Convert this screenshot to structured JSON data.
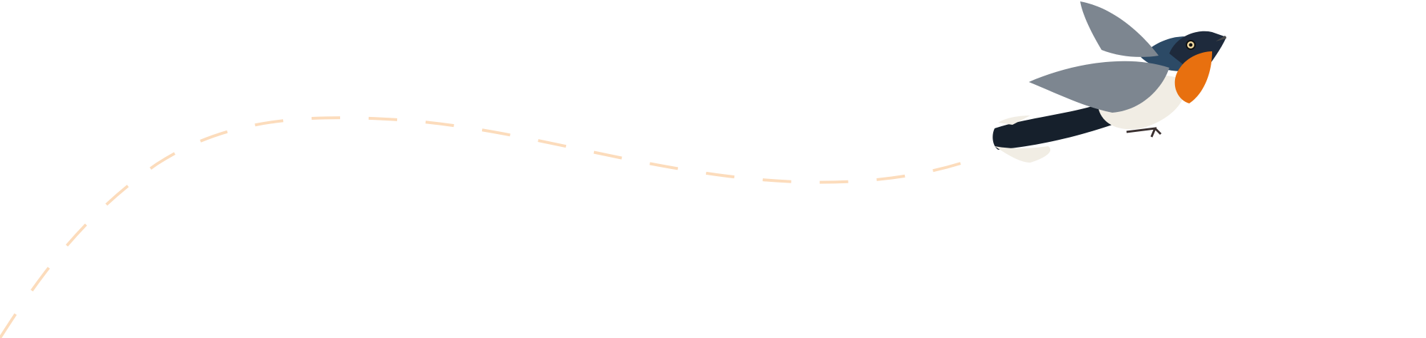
{
  "illustration": {
    "subject_icon": "flying-bird-icon",
    "flight_path_color": "#fcdcbc",
    "colors": {
      "throat": "#e8700f",
      "head": "#1e2a3c",
      "back": "#2c4a66",
      "wing": "#7d8690",
      "belly": "#f1ede4",
      "tail": "#16202c"
    }
  }
}
